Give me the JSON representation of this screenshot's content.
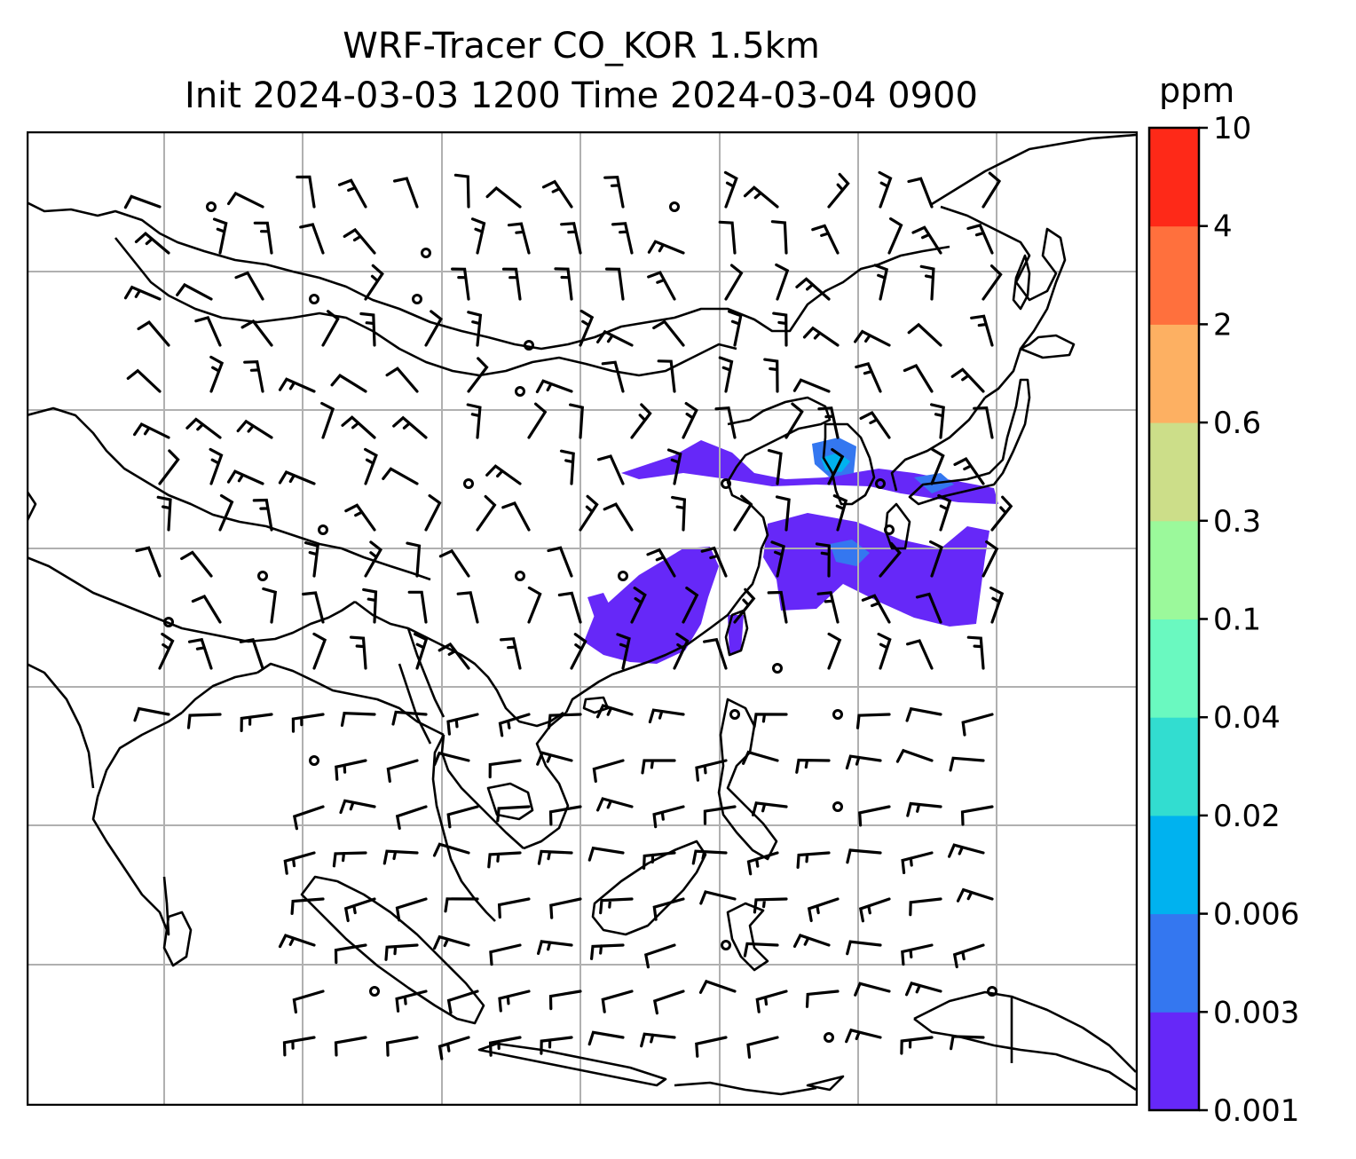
{
  "title_line1": "WRF-Tracer CO_KOR 1.5km",
  "title_line2": "Init 2024-03-03 1200 Time 2024-03-04 0900",
  "colorbar": {
    "unit": "ppm",
    "levels": [
      "0.001",
      "0.003",
      "0.006",
      "0.02",
      "0.04",
      "0.1",
      "0.3",
      "0.6",
      "2",
      "4",
      "10"
    ],
    "colors": [
      "#6628f8",
      "#3477f0",
      "#00b2ef",
      "#32ddd0",
      "#6af9c0",
      "#9bf99b",
      "#ccde89",
      "#fdb062",
      "#ff703d",
      "#fe2918"
    ]
  },
  "map": {
    "gridline_color": "#b0b0b0",
    "coastline_color": "#000000",
    "tracer_color": "#6628f8",
    "tracer_secondary_color": "#3477f0",
    "tracer_peak_color": "#00b2ef"
  }
}
